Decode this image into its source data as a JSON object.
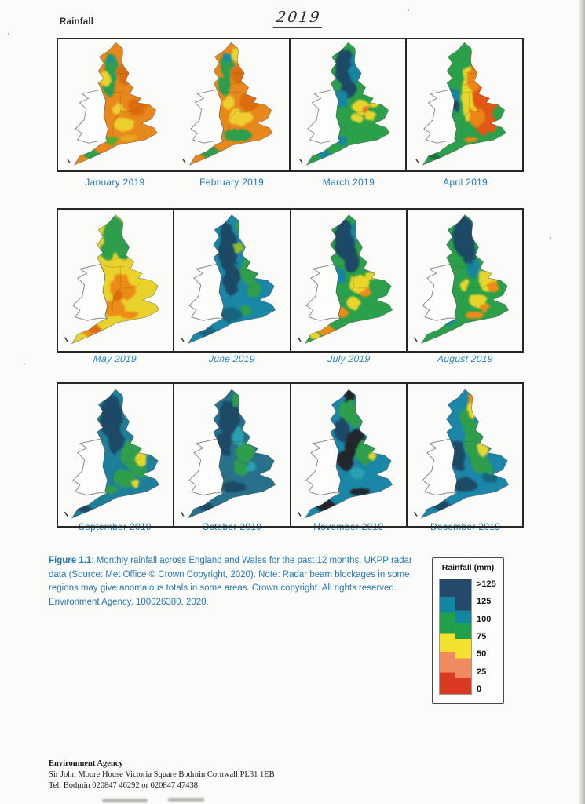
{
  "header": {
    "label": "Rainfall",
    "year": "2019"
  },
  "months": [
    {
      "label": "January 2019",
      "base": "#e8871b",
      "patches": [
        [
          "#2f9e4d",
          46,
          26,
          6,
          13
        ],
        [
          "#2f9e4d",
          44,
          43,
          5,
          9
        ],
        [
          "#1f8f9f",
          46,
          19,
          3,
          4
        ],
        [
          "#2f9e4d",
          27,
          105,
          13,
          5,
          25
        ],
        [
          "#5aab2d",
          46,
          92,
          7,
          4
        ],
        [
          "#e9d52c",
          40,
          36,
          4,
          7
        ],
        [
          "#eccf2e",
          58,
          78,
          10,
          6
        ],
        [
          "#eccf2e",
          52,
          64,
          6,
          5
        ],
        [
          "#dd6c0f",
          60,
          30,
          9,
          12
        ],
        [
          "#dd6c0f",
          70,
          62,
          9,
          8
        ],
        [
          "#e8a51f",
          62,
          90,
          8,
          4
        ]
      ]
    },
    {
      "label": "February 2019",
      "base": "#e8871b",
      "patches": [
        [
          "#2f9e4d",
          46,
          24,
          6,
          11
        ],
        [
          "#1f8f9f",
          47,
          17,
          4,
          5
        ],
        [
          "#2f9e4d",
          44,
          42,
          5,
          9
        ],
        [
          "#e9d52c",
          55,
          14,
          5,
          6
        ],
        [
          "#2f9e4d",
          56,
          88,
          13,
          6
        ],
        [
          "#2f9e4d",
          30,
          103,
          13,
          6,
          25
        ],
        [
          "#eccf2e",
          58,
          72,
          12,
          7
        ],
        [
          "#eccf2e",
          48,
          58,
          6,
          6
        ],
        [
          "#dd6c0f",
          58,
          32,
          8,
          9
        ],
        [
          "#dd6c0f",
          67,
          58,
          9,
          8
        ]
      ]
    },
    {
      "label": "March 2019",
      "base": "#2aa04a",
      "patches": [
        [
          "#1c4866",
          47,
          25,
          9,
          17
        ],
        [
          "#1c4866",
          50,
          44,
          7,
          11
        ],
        [
          "#1286a0",
          57,
          28,
          6,
          13
        ],
        [
          "#1286a0",
          44,
          54,
          6,
          8
        ],
        [
          "#e9d52c",
          62,
          62,
          8,
          6
        ],
        [
          "#e9d52c",
          70,
          70,
          6,
          4
        ],
        [
          "#e9d52c",
          58,
          72,
          5,
          4
        ],
        [
          "#e8731a",
          66,
          64,
          4,
          3
        ],
        [
          "#1286a0",
          42,
          92,
          8,
          4
        ],
        [
          "#1286a0",
          26,
          104,
          11,
          4,
          25
        ],
        [
          "#e9d52c",
          74,
          60,
          4,
          3
        ]
      ]
    },
    {
      "label": "April 2019",
      "base": "#2aa04a",
      "patches": [
        [
          "#e9d52c",
          54,
          50,
          7,
          26
        ],
        [
          "#e35712",
          70,
          50,
          13,
          20
        ],
        [
          "#e35712",
          70,
          78,
          10,
          10
        ],
        [
          "#ec8517",
          60,
          36,
          8,
          12
        ],
        [
          "#ec8517",
          62,
          72,
          7,
          9
        ],
        [
          "#e35712",
          62,
          20,
          6,
          10
        ],
        [
          "#1286a0",
          41,
          52,
          4,
          7
        ],
        [
          "#1c4866",
          42,
          60,
          3,
          5
        ],
        [
          "#2f9e4d",
          28,
          103,
          12,
          5,
          25
        ],
        [
          "#176e38",
          22,
          107,
          6,
          3,
          25
        ],
        [
          "#ec8517",
          56,
          92,
          6,
          3
        ]
      ]
    },
    {
      "label": "May 2019",
      "base": "#e9d22b",
      "patches": [
        [
          "#2f9e4d",
          49,
          20,
          10,
          15
        ],
        [
          "#2f9e4d",
          58,
          34,
          8,
          8
        ],
        [
          "#2f9e4d",
          42,
          34,
          5,
          8
        ],
        [
          "#ec8c17",
          56,
          66,
          12,
          11
        ],
        [
          "#ec8c17",
          48,
          84,
          10,
          7
        ],
        [
          "#ec8c17",
          27,
          104,
          13,
          5,
          25
        ],
        [
          "#dd6c0f",
          30,
          101,
          7,
          4,
          25
        ],
        [
          "#ec8c17",
          62,
          90,
          8,
          4
        ],
        [
          "#e9d52c",
          68,
          58,
          7,
          7
        ],
        [
          "#dd6c0f",
          52,
          74,
          5,
          5
        ]
      ]
    },
    {
      "label": "June 2019",
      "base": "#1a86a8",
      "patches": [
        [
          "#1c4866",
          47,
          34,
          8,
          19
        ],
        [
          "#1c4866",
          50,
          60,
          8,
          13
        ],
        [
          "#1c4866",
          45,
          17,
          5,
          8
        ],
        [
          "#2f9e4d",
          65,
          52,
          8,
          11
        ],
        [
          "#2f9e4d",
          69,
          68,
          7,
          7
        ],
        [
          "#8fbe2a",
          56,
          32,
          4,
          5
        ],
        [
          "#2f9e4d",
          58,
          13,
          5,
          6
        ],
        [
          "#17657f",
          50,
          90,
          10,
          6
        ],
        [
          "#2f9e4d",
          62,
          86,
          5,
          4
        ],
        [
          "#17657f",
          28,
          104,
          12,
          5,
          25
        ]
      ]
    },
    {
      "label": "July 2019",
      "base": "#2aa04a",
      "patches": [
        [
          "#1c4866",
          46,
          24,
          9,
          17
        ],
        [
          "#1c4866",
          52,
          42,
          7,
          12
        ],
        [
          "#1286a0",
          58,
          18,
          6,
          9
        ],
        [
          "#1286a0",
          42,
          56,
          5,
          7
        ],
        [
          "#e9d52c",
          60,
          64,
          9,
          8
        ],
        [
          "#e9d52c",
          54,
          80,
          6,
          5
        ],
        [
          "#e9d52c",
          70,
          56,
          5,
          4
        ],
        [
          "#ec8c17",
          64,
          70,
          5,
          4
        ],
        [
          "#ec8c17",
          28,
          102,
          11,
          5,
          25
        ],
        [
          "#e9d52c",
          20,
          108,
          6,
          3,
          25
        ],
        [
          "#ec8c17",
          44,
          88,
          5,
          4
        ]
      ]
    },
    {
      "label": "August 2019",
      "base": "#2aa04a",
      "patches": [
        [
          "#1c4866",
          49,
          22,
          10,
          17
        ],
        [
          "#1c4866",
          54,
          38,
          6,
          9
        ],
        [
          "#1286a0",
          58,
          50,
          6,
          8
        ],
        [
          "#e9d52c",
          70,
          60,
          8,
          10
        ],
        [
          "#e9d52c",
          62,
          78,
          8,
          6
        ],
        [
          "#ec8c17",
          75,
          66,
          5,
          5
        ],
        [
          "#ec8c17",
          58,
          90,
          8,
          4
        ],
        [
          "#ec8c17",
          68,
          84,
          5,
          3
        ],
        [
          "#1286a0",
          36,
          95,
          6,
          4
        ],
        [
          "#e9d52c",
          50,
          64,
          5,
          5
        ]
      ]
    },
    {
      "label": "September 2019",
      "base": "#1e7f9a",
      "patches": [
        [
          "#1c4866",
          46,
          26,
          10,
          19
        ],
        [
          "#1c4866",
          50,
          48,
          7,
          11
        ],
        [
          "#2f9e4d",
          65,
          60,
          10,
          12
        ],
        [
          "#2f9e4d",
          58,
          80,
          10,
          7
        ],
        [
          "#2f9e4d",
          71,
          74,
          7,
          6
        ],
        [
          "#e3d82a",
          73,
          64,
          5,
          6
        ],
        [
          "#e3d82a",
          68,
          85,
          4,
          3
        ],
        [
          "#1c4866",
          22,
          106,
          9,
          4,
          25
        ],
        [
          "#2f9e4d",
          46,
          90,
          6,
          4
        ]
      ]
    },
    {
      "label": "October 2019",
      "base": "#27718c",
      "patches": [
        [
          "#1c4866",
          48,
          28,
          9,
          16
        ],
        [
          "#1c4866",
          44,
          50,
          6,
          10
        ],
        [
          "#1c4866",
          52,
          88,
          10,
          5
        ],
        [
          "#1c4866",
          26,
          104,
          11,
          4,
          25
        ],
        [
          "#2f9e4d",
          62,
          58,
          8,
          8
        ],
        [
          "#2f9e4d",
          58,
          72,
          6,
          6
        ],
        [
          "#2f9e4d",
          54,
          13,
          4,
          6
        ],
        [
          "#29a0b0",
          56,
          44,
          5,
          8
        ],
        [
          "#29a0b0",
          66,
          70,
          5,
          4
        ]
      ]
    },
    {
      "label": "November 2019",
      "base": "#1a86a8",
      "patches": [
        [
          "#20262b",
          56,
          50,
          10,
          12
        ],
        [
          "#20262b",
          48,
          64,
          8,
          9
        ],
        [
          "#20262b",
          28,
          103,
          14,
          6,
          25
        ],
        [
          "#20262b",
          60,
          92,
          9,
          4
        ],
        [
          "#20262b",
          50,
          10,
          5,
          6
        ],
        [
          "#2f9e4d",
          50,
          22,
          8,
          10
        ],
        [
          "#2f9e4d",
          65,
          58,
          9,
          10
        ],
        [
          "#2f9e4d",
          56,
          32,
          5,
          5
        ],
        [
          "#e3d82a",
          71,
          61,
          3,
          4
        ],
        [
          "#1c4866",
          44,
          38,
          6,
          10
        ],
        [
          "#29a0b0",
          58,
          76,
          6,
          5
        ]
      ]
    },
    {
      "label": "December 2019",
      "base": "#1a86a8",
      "patches": [
        [
          "#2f9e4d",
          60,
          48,
          10,
          17
        ],
        [
          "#2f9e4d",
          64,
          68,
          8,
          8
        ],
        [
          "#2f9e4d",
          52,
          30,
          6,
          11
        ],
        [
          "#e9d52c",
          57,
          20,
          5,
          8
        ],
        [
          "#ec8c17",
          56,
          10,
          3,
          6
        ],
        [
          "#e9d52c",
          66,
          56,
          4,
          5
        ],
        [
          "#1c4866",
          44,
          60,
          6,
          13
        ],
        [
          "#1c4866",
          50,
          86,
          10,
          6
        ],
        [
          "#1c4866",
          28,
          103,
          11,
          5,
          25
        ],
        [
          "#17657f",
          72,
          80,
          6,
          5
        ],
        [
          "#2f9e4d",
          70,
          72,
          5,
          4
        ]
      ]
    }
  ],
  "caption": {
    "figure_label": "Figure 1.1",
    "text": ": Monthly rainfall across England and Wales for the past 12 months. UKPP radar data (Source: Met Office © Crown Copyright, 2020). Note: Radar beam blockages in some regions may give anomalous totals in some areas. Crown copyright. All rights reserved. Environment Agency, 100026380, 2020."
  },
  "legend": {
    "title": "Rainfall (mm)",
    "labels": [
      ">125",
      "125",
      "100",
      "75",
      "50",
      "25",
      "0"
    ],
    "colors": {
      "navy": "#24496b",
      "teal": "#1286a0",
      "green": "#21a04c",
      "yellow": "#f2e22e",
      "salmon": "#ef8a5e",
      "red": "#d93a21"
    }
  },
  "footer": {
    "org": "Environment Agency",
    "address": "Sir John Moore House Victoria Square Bodmin Cornwall PL31 1EB",
    "tel": "Tel: Bodmin 020847 46292 or 020847 47438"
  }
}
